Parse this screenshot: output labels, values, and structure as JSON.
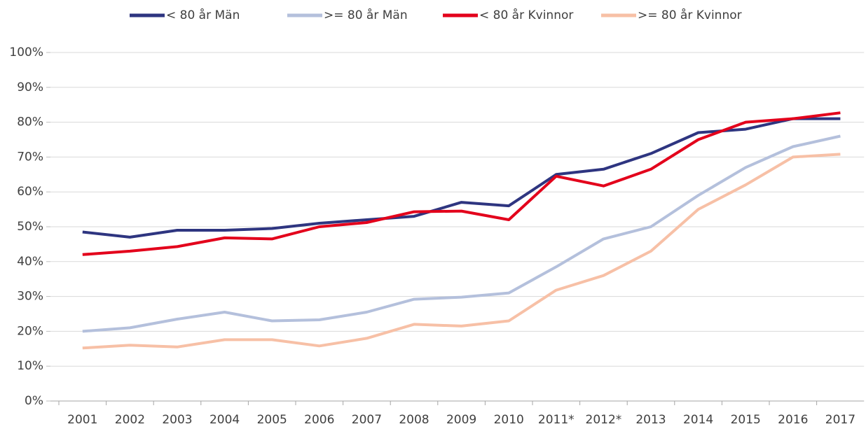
{
  "chart_data": {
    "type": "line",
    "categories": [
      "2001",
      "2002",
      "2003",
      "2004",
      "2005",
      "2006",
      "2007",
      "2008",
      "2009",
      "2010",
      "2011*",
      "2012*",
      "2013",
      "2014",
      "2015",
      "2016",
      "2017"
    ],
    "series": [
      {
        "name": "< 80 år Män",
        "color": "#2e3580",
        "values": [
          48.5,
          47,
          49,
          49,
          49.5,
          51,
          52,
          53,
          57,
          56,
          65,
          66.5,
          71,
          77,
          78,
          81,
          81
        ]
      },
      {
        "name": ">= 80 år Män",
        "color": "#b4c0dc",
        "values": [
          20,
          21,
          23.5,
          25.5,
          23,
          23.3,
          25.5,
          29.2,
          29.8,
          31,
          38.5,
          46.5,
          50,
          59,
          67,
          73,
          76
        ]
      },
      {
        "name": "< 80 år Kvinnor",
        "color": "#e3001b",
        "values": [
          42,
          43,
          44.3,
          46.8,
          46.5,
          50,
          51.2,
          54.3,
          54.5,
          52,
          64.5,
          61.7,
          66.5,
          75,
          80,
          81,
          82.7
        ]
      },
      {
        "name": ">= 80 år Kvinnor",
        "color": "#f7c0a6",
        "values": [
          15.2,
          16,
          15.5,
          17.6,
          17.6,
          15.8,
          18,
          22,
          21.5,
          23,
          31.8,
          36,
          43,
          55,
          62,
          70,
          70.8
        ]
      }
    ],
    "ylim": [
      0,
      100
    ],
    "yticks": [
      {
        "value": 0,
        "label": "0%"
      },
      {
        "value": 10,
        "label": "10%"
      },
      {
        "value": 20,
        "label": "20%"
      },
      {
        "value": 30,
        "label": "30%"
      },
      {
        "value": 40,
        "label": "40%"
      },
      {
        "value": 50,
        "label": "50%"
      },
      {
        "value": 60,
        "label": "60%"
      },
      {
        "value": 70,
        "label": "70%"
      },
      {
        "value": 80,
        "label": "80%"
      },
      {
        "value": 90,
        "label": "90%"
      },
      {
        "value": 100,
        "label": "100%"
      }
    ],
    "grid": true,
    "legend": "top"
  }
}
